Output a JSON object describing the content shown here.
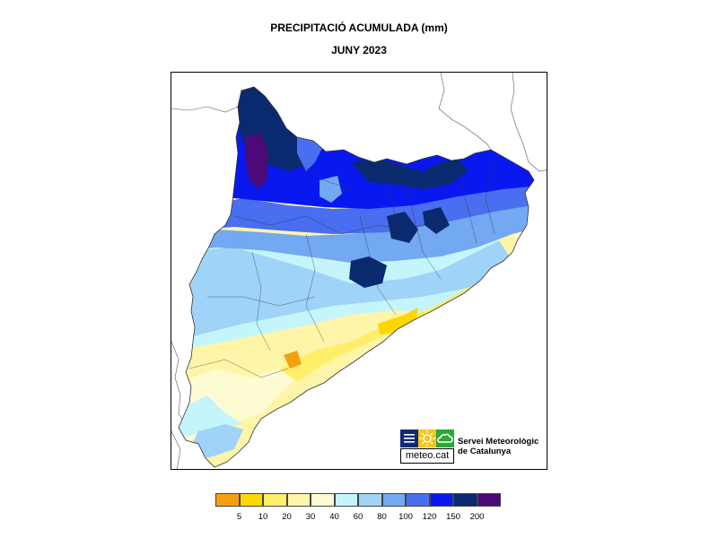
{
  "title": "PRECIPITACIÓ ACUMULADA (mm)",
  "subtitle": "JUNY 2023",
  "organization": {
    "logo_text": "meteo.cat",
    "name_line1": "Servei Meteorològic",
    "name_line2": "de Catalunya"
  },
  "legend": {
    "colors": [
      "#f5a00f",
      "#ffd700",
      "#ffee6a",
      "#fff5a8",
      "#fdfbd2",
      "#c4f5fb",
      "#9fd3f7",
      "#73a8f2",
      "#4a6ef0",
      "#0a18f0",
      "#0a2a70",
      "#4b0a78"
    ],
    "labels": [
      "5",
      "10",
      "20",
      "30",
      "40",
      "60",
      "80",
      "100",
      "120",
      "150",
      "200"
    ]
  }
}
